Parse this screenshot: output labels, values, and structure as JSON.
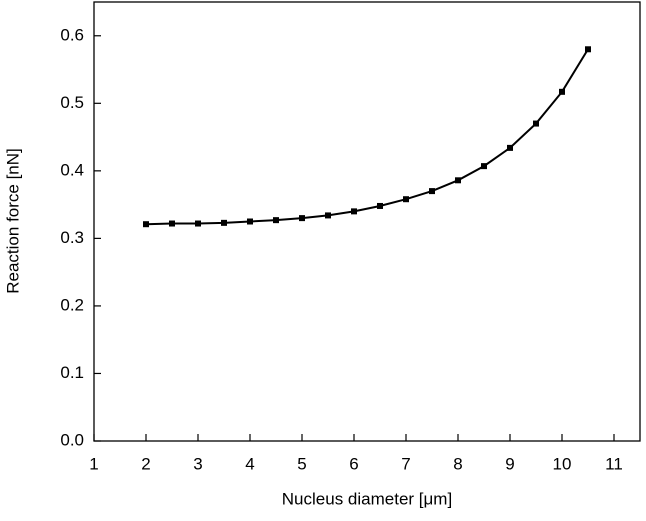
{
  "chart_data": {
    "type": "line",
    "x_label": "Nucleus diameter  [μm]",
    "y_label": "Reaction force [nN]",
    "x": [
      2,
      2.5,
      3,
      3.5,
      4,
      4.5,
      5,
      5.5,
      6,
      6.5,
      7,
      7.5,
      8,
      8.5,
      9,
      9.5,
      10,
      10.5
    ],
    "series": [
      {
        "color": "#000000",
        "values": [
          0.321,
          0.322,
          0.322,
          0.323,
          0.325,
          0.327,
          0.33,
          0.334,
          0.34,
          0.348,
          0.358,
          0.37,
          0.386,
          0.407,
          0.434,
          0.47,
          0.517,
          0.58
        ]
      }
    ],
    "xlim": [
      1,
      11.5
    ],
    "xticks": [
      1,
      2,
      3,
      4,
      5,
      6,
      7,
      8,
      9,
      10,
      11
    ],
    "ylim": [
      0,
      0.65
    ],
    "yticks": [
      {
        "value": 0,
        "label": "0.0"
      },
      0.1,
      0.2,
      0.3,
      0.4,
      0.5,
      0.6
    ]
  }
}
